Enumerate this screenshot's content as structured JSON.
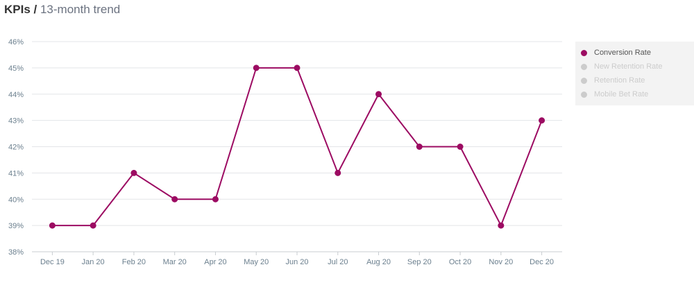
{
  "header": {
    "bold": "KPIs /",
    "rest": " 13-month trend"
  },
  "chart_data": {
    "type": "line",
    "categories": [
      "Dec 19",
      "Jan 20",
      "Feb 20",
      "Mar 20",
      "Apr 20",
      "May 20",
      "Jun 20",
      "Jul 20",
      "Aug 20",
      "Sep 20",
      "Oct 20",
      "Nov 20",
      "Dec 20"
    ],
    "series": [
      {
        "name": "Conversion Rate",
        "values": [
          39,
          39,
          41,
          40,
          40,
          45,
          45,
          41,
          44,
          42,
          42,
          39,
          43
        ],
        "color": "#9c0b62"
      }
    ],
    "ylim": [
      38,
      46
    ],
    "yticks": [
      "38%",
      "39%",
      "40%",
      "41%",
      "42%",
      "43%",
      "44%",
      "45%",
      "46%"
    ],
    "grid": true,
    "legend_position": "right",
    "legend": [
      {
        "label": "Conversion Rate",
        "active": true,
        "color": "#9c0b62"
      },
      {
        "label": "New Retention Rate",
        "active": false,
        "color": "#cccccc"
      },
      {
        "label": "Retention Rate",
        "active": false,
        "color": "#cccccc"
      },
      {
        "label": "Mobile Bet Rate",
        "active": false,
        "color": "#cccccc"
      }
    ]
  }
}
